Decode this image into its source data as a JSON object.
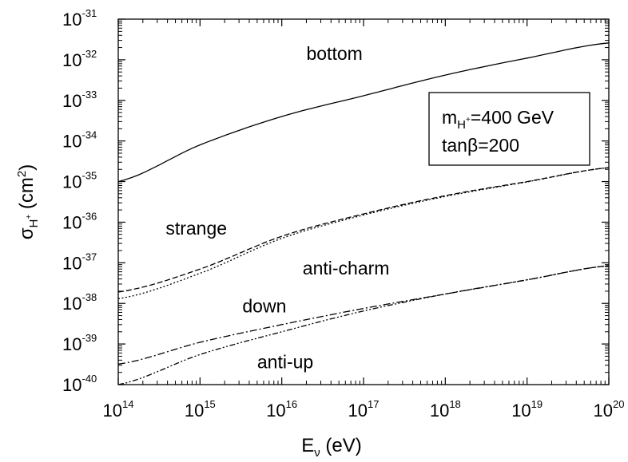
{
  "chart_data": {
    "type": "line",
    "x_scale": "log",
    "y_scale": "log",
    "xlim": [
      100000000000000.0,
      1e+20
    ],
    "ylim": [
      1e-40,
      1e-31
    ],
    "xlabel": "E_ν (eV)",
    "ylabel": "σ_H+ (cm²)",
    "x_ticks": [
      {
        "value": 100000000000000.0,
        "base": "10",
        "exp": "14"
      },
      {
        "value": 1000000000000000.0,
        "base": "10",
        "exp": "15"
      },
      {
        "value": 1e+16,
        "base": "10",
        "exp": "16"
      },
      {
        "value": 1e+17,
        "base": "10",
        "exp": "17"
      },
      {
        "value": 1e+18,
        "base": "10",
        "exp": "18"
      },
      {
        "value": 1e+19,
        "base": "10",
        "exp": "19"
      },
      {
        "value": 1e+20,
        "base": "10",
        "exp": "20"
      }
    ],
    "y_ticks": [
      {
        "value": 1e-40,
        "base": "10",
        "exp": "-40"
      },
      {
        "value": 1e-39,
        "base": "10",
        "exp": "-39"
      },
      {
        "value": 1e-38,
        "base": "10",
        "exp": "-38"
      },
      {
        "value": 1e-37,
        "base": "10",
        "exp": "-37"
      },
      {
        "value": 1e-36,
        "base": "10",
        "exp": "-36"
      },
      {
        "value": 1e-35,
        "base": "10",
        "exp": "-35"
      },
      {
        "value": 1e-34,
        "base": "10",
        "exp": "-34"
      },
      {
        "value": 1e-33,
        "base": "10",
        "exp": "-33"
      },
      {
        "value": 1e-32,
        "base": "10",
        "exp": "-32"
      },
      {
        "value": 1e-31,
        "base": "10",
        "exp": "-31"
      }
    ],
    "legend": {
      "line1_main": "m",
      "line1_sub": "H",
      "line1_subsup": "+",
      "line1_rest": "=400 GeV",
      "line2": "tanβ=200",
      "placement": "top-right"
    },
    "series": [
      {
        "name": "bottom",
        "style": "solid",
        "x": [
          100000000000000.0,
          1000000000000000.0,
          1e+16,
          1e+17,
          1e+18,
          1e+19,
          1e+20
        ],
        "y": [
          1e-35,
          8e-35,
          4e-34,
          1.3e-33,
          4.2e-33,
          1.1e-32,
          2.6e-32
        ]
      },
      {
        "name": "strange",
        "style": "dashed",
        "x": [
          100000000000000.0,
          1000000000000000.0,
          1e+16,
          1e+17,
          1e+18,
          1e+19,
          1e+20
        ],
        "y": [
          1.9e-38,
          7e-38,
          4.5e-37,
          1.6e-36,
          4.5e-36,
          1e-35,
          2.2e-35
        ]
      },
      {
        "name": "anti-charm",
        "style": "dotted",
        "x": [
          100000000000000.0,
          1000000000000000.0,
          1e+16,
          1e+17,
          1e+18,
          1e+19,
          1e+20
        ],
        "y": [
          1.3e-38,
          5.5e-38,
          4e-37,
          1.5e-36,
          4.3e-36,
          9.8e-36,
          2.2e-35
        ]
      },
      {
        "name": "down",
        "style": "dashdot",
        "x": [
          100000000000000.0,
          1000000000000000.0,
          1e+16,
          1e+17,
          1e+18,
          1e+19,
          1e+20
        ],
        "y": [
          3.2e-40,
          1.1e-39,
          3e-39,
          7.5e-39,
          1.7e-38,
          3.8e-38,
          8.5e-38
        ]
      },
      {
        "name": "anti-up",
        "style": "dashdotdot",
        "x": [
          100000000000000.0,
          1000000000000000.0,
          1e+16,
          1e+17,
          1e+18,
          1e+19,
          1e+20
        ],
        "y": [
          1e-40,
          5.5e-40,
          2e-39,
          6.5e-39,
          1.7e-38,
          3.8e-38,
          8.5e-38
        ]
      }
    ],
    "curve_labels": [
      {
        "text": "bottom",
        "x": 2e+16,
        "y": 1e-32
      },
      {
        "text": "strange",
        "x": 380000000000000.0,
        "y": 5e-37
      },
      {
        "text": "anti-charm",
        "x": 1.8e+16,
        "y": 5.2e-38
      },
      {
        "text": "down",
        "x": 3300000000000000.0,
        "y": 6e-39
      },
      {
        "text": "anti-up",
        "x": 5000000000000000.0,
        "y": 2.5e-40
      }
    ]
  }
}
